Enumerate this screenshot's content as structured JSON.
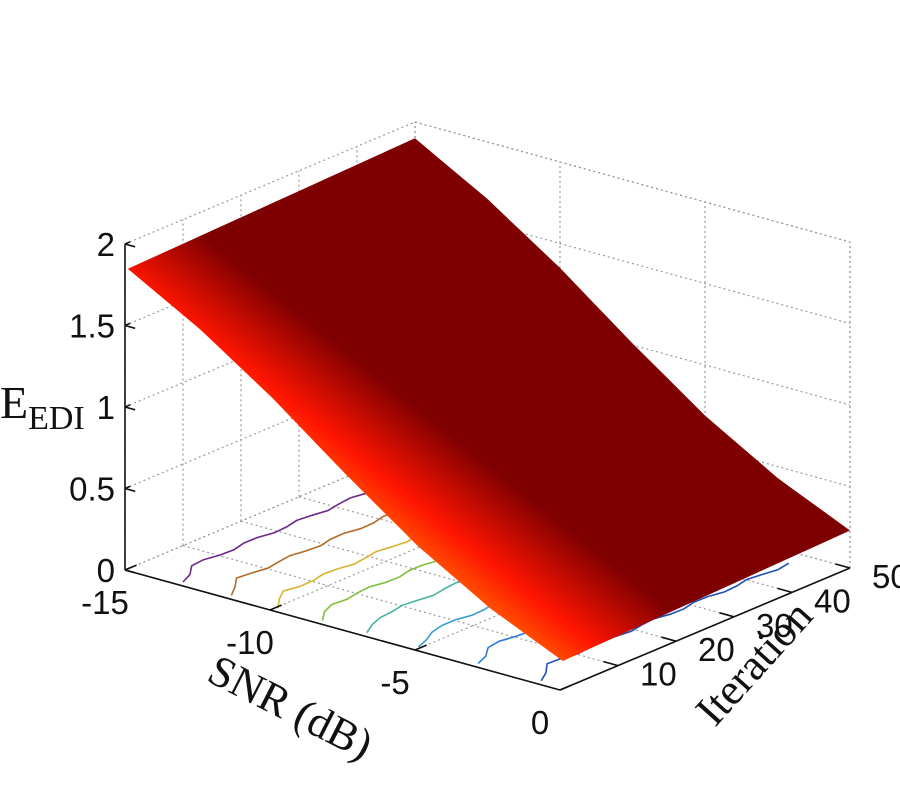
{
  "chart_data": {
    "type": "surface",
    "xlabel": "SNR (dB)",
    "ylabel": "Iteration",
    "zlabel_main": "E",
    "zlabel_sub": "EDI",
    "x_ticks": [
      "-15",
      "-10",
      "-5",
      "0"
    ],
    "y_ticks": [
      "10",
      "20",
      "30",
      "40",
      "50"
    ],
    "z_ticks": [
      "0",
      "0.5",
      "1",
      "1.5",
      "2"
    ],
    "xlim": [
      -15,
      0
    ],
    "ylim": [
      0,
      50
    ],
    "zlim": [
      0,
      2
    ],
    "colormap": "jet",
    "grid": true,
    "contour_projection": true,
    "x": [
      -15,
      -12.5,
      -10,
      -7.5,
      -5,
      -2.5,
      0
    ],
    "z_by_snr": [
      1.87,
      1.62,
      1.32,
      0.98,
      0.66,
      0.4,
      0.2
    ],
    "iteration_dependence": "nearly constant across iterations"
  }
}
